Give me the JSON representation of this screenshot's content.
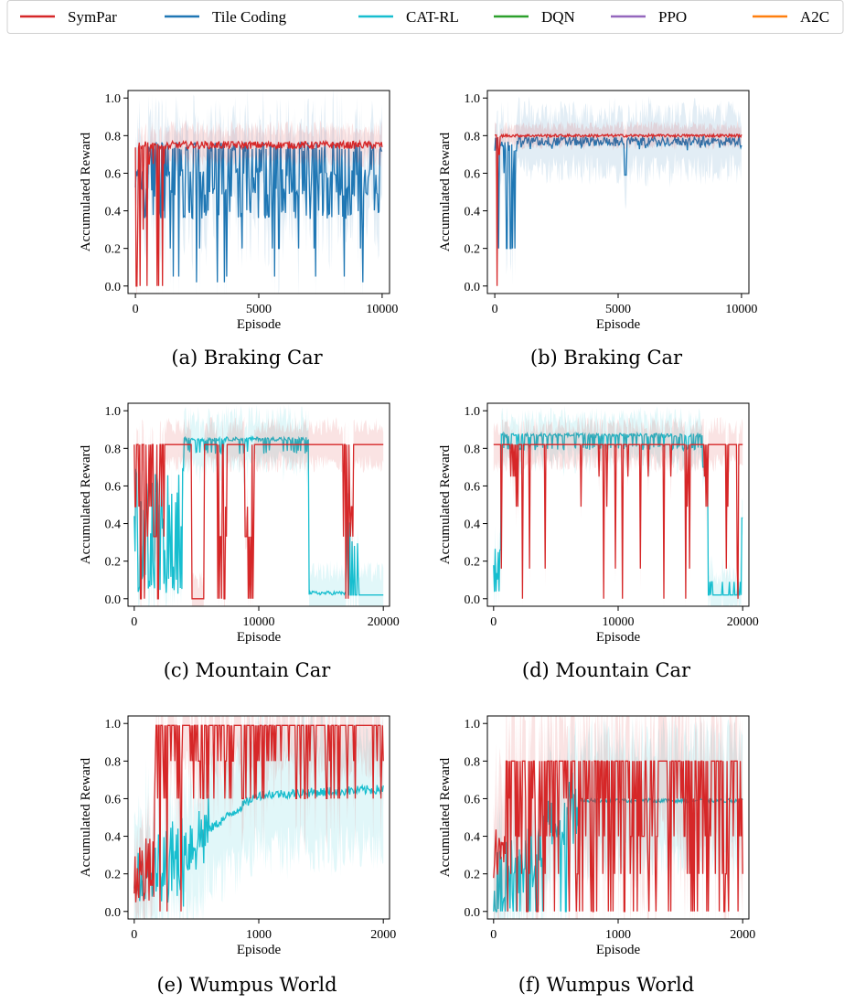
{
  "legend": {
    "entries": [
      {
        "name": "SymPar",
        "color": "#d62728"
      },
      {
        "name": "Tile Coding",
        "color": "#1f77b4"
      },
      {
        "name": "CAT-RL",
        "color": "#17becf"
      },
      {
        "name": "DQN",
        "color": "#2ca02c"
      },
      {
        "name": "PPO",
        "color": "#9467bd"
      },
      {
        "name": "A2C",
        "color": "#ff7f0e"
      }
    ]
  },
  "chart_data": [
    {
      "type": "line",
      "caption": "(a) Braking Car",
      "xlabel": "Episode",
      "ylabel": "Accumulated Reward",
      "xlim": [
        -300,
        10300
      ],
      "ylim": [
        -0.04,
        1.04
      ],
      "xticks": [
        0,
        5000,
        10000
      ],
      "yticks": [
        0.0,
        0.2,
        0.4,
        0.6,
        0.8,
        1.0
      ],
      "grid": false,
      "series": [
        {
          "name": "Tile Coding",
          "color": "#1f77b4",
          "band": 0.2,
          "x_end": 10000,
          "patterns": [
            "osc",
            0.74,
            [
              0.38,
              0.5,
              0.6
            ],
            0.15,
            [
              0.2,
              0.05,
              0.02
            ]
          ]
        },
        {
          "name": "SymPar",
          "color": "#d62728",
          "band": 0.08,
          "x_end": 10000,
          "patterns": [
            "early_dips",
            0.75,
            [
              0.0,
              0.3,
              0.65
            ]
          ]
        }
      ]
    },
    {
      "type": "line",
      "caption": "(b) Braking Car",
      "xlabel": "Episode",
      "ylabel": "Accumulated Reward",
      "xlim": [
        -300,
        10300
      ],
      "ylim": [
        -0.04,
        1.04
      ],
      "xticks": [
        0,
        5000,
        10000
      ],
      "yticks": [
        0.0,
        0.2,
        0.4,
        0.6,
        0.8,
        1.0
      ],
      "grid": false,
      "series": [
        {
          "name": "Tile Coding",
          "color": "#1f77b4",
          "band": 0.15,
          "x_end": 10000,
          "patterns": [
            "converge_low",
            0.77,
            [
              0.2,
              0.6,
              0.72
            ],
            0.59
          ]
        },
        {
          "name": "SymPar",
          "color": "#d62728",
          "band": 0.05,
          "x_end": 10000,
          "patterns": [
            "converge_high",
            0.8,
            [
              0.0,
              0.7
            ]
          ]
        }
      ]
    },
    {
      "type": "line",
      "caption": "(c) Mountain Car",
      "xlabel": "Episode",
      "ylabel": "Accumulated Reward",
      "xlim": [
        -500,
        20500
      ],
      "ylim": [
        -0.04,
        1.04
      ],
      "xticks": [
        0,
        10000,
        20000
      ],
      "yticks": [
        0.0,
        0.2,
        0.4,
        0.6,
        0.8,
        1.0
      ],
      "grid": false,
      "series": [
        {
          "name": "CAT-RL",
          "color": "#17becf",
          "band": 0.12,
          "x_end": 20000,
          "patterns": [
            "plateau_drop",
            0.85,
            0.02
          ]
        },
        {
          "name": "SymPar",
          "color": "#d62728",
          "band": 0.1,
          "x_end": 20000,
          "patterns": [
            "blocks",
            0.82,
            [
              0.33,
              0.0,
              0.49
            ]
          ]
        }
      ]
    },
    {
      "type": "line",
      "caption": "(d) Mountain Car",
      "xlabel": "Episode",
      "ylabel": "Accumulated Reward",
      "xlim": [
        -500,
        20500
      ],
      "ylim": [
        -0.04,
        1.04
      ],
      "xticks": [
        0,
        10000,
        20000
      ],
      "yticks": [
        0.0,
        0.2,
        0.4,
        0.6,
        0.8,
        1.0
      ],
      "grid": false,
      "series": [
        {
          "name": "CAT-RL",
          "color": "#17becf",
          "band": 0.1,
          "x_end": 20000,
          "patterns": [
            "plateau_drop2",
            0.87,
            0.02
          ]
        },
        {
          "name": "SymPar",
          "color": "#d62728",
          "band": 0.1,
          "x_end": 20000,
          "patterns": [
            "blocks2",
            0.82,
            [
              0.16,
              0.49,
              0.65,
              0.0
            ]
          ]
        }
      ]
    },
    {
      "type": "line",
      "caption": "(e) Wumpus World",
      "xlabel": "Episode",
      "ylabel": "Accumulated Reward",
      "xlim": [
        -50,
        2050
      ],
      "ylim": [
        -0.04,
        1.04
      ],
      "xticks": [
        0,
        1000,
        2000
      ],
      "yticks": [
        0.0,
        0.2,
        0.4,
        0.6,
        0.8,
        1.0
      ],
      "grid": false,
      "series": [
        {
          "name": "CAT-RL",
          "color": "#17becf",
          "band": 0.3,
          "x_end": 2000,
          "patterns": [
            "rise",
            0.65,
            0.05
          ]
        },
        {
          "name": "SymPar",
          "color": "#d62728",
          "band": 0.2,
          "x_end": 2000,
          "patterns": [
            "spiky_high",
            0.99,
            [
              0.8,
              0.6
            ]
          ]
        }
      ]
    },
    {
      "type": "line",
      "caption": "(f) Wumpus World",
      "xlabel": "Episode",
      "ylabel": "Accumulated Reward",
      "xlim": [
        -50,
        2050
      ],
      "ylim": [
        -0.04,
        1.04
      ],
      "xticks": [
        0,
        1000,
        2000
      ],
      "yticks": [
        0.0,
        0.2,
        0.4,
        0.6,
        0.8,
        1.0
      ],
      "grid": false,
      "series": [
        {
          "name": "CAT-RL",
          "color": "#17becf",
          "band": 0.3,
          "x_end": 2000,
          "patterns": [
            "rise2",
            0.59,
            0.05
          ]
        },
        {
          "name": "SymPar",
          "color": "#d62728",
          "band": 0.35,
          "x_end": 2000,
          "patterns": [
            "spiky_mid",
            0.8,
            [
              0.6,
              0.4,
              0.2,
              0.0
            ]
          ]
        }
      ]
    }
  ]
}
